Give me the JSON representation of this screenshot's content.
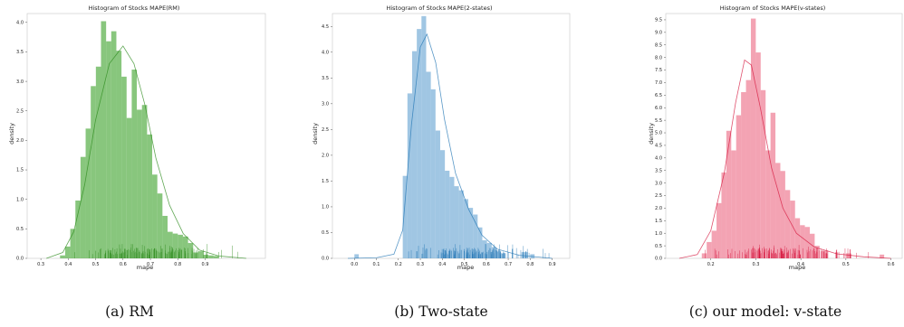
{
  "chart_data": [
    {
      "type": "histogram",
      "title": "Histogram of Stocks MAPE(RM)",
      "xlabel": "mape",
      "ylabel": "density",
      "caption": "(a) RM",
      "xlim": [
        0.25,
        1.12
      ],
      "ylim": [
        0,
        4.15
      ],
      "xticks": [
        "0.3",
        "0.4",
        "0.5",
        "0.6",
        "0.7",
        "0.8",
        "0.9"
      ],
      "yticks": [
        "0.0",
        "0.5",
        "1.0",
        "1.5",
        "2.0",
        "2.5",
        "3.0",
        "3.5",
        "4.0"
      ],
      "color": "#5ab04b",
      "rug_color": "#2e8b1e",
      "bin_start": 0.37,
      "bin_width": 0.0187,
      "values": [
        0.05,
        0.2,
        0.5,
        0.98,
        1.72,
        2.2,
        2.92,
        3.25,
        4.02,
        3.68,
        3.85,
        3.52,
        3.08,
        2.38,
        3.2,
        2.52,
        2.6,
        2.1,
        1.42,
        1.1,
        0.72,
        0.45,
        0.42,
        0.4,
        0.37,
        0.26,
        0.1,
        0.12,
        0.06,
        0.05,
        0.04
      ],
      "kde": [
        [
          0.32,
          0.0
        ],
        [
          0.38,
          0.1
        ],
        [
          0.42,
          0.45
        ],
        [
          0.46,
          1.25
        ],
        [
          0.5,
          2.35
        ],
        [
          0.55,
          3.3
        ],
        [
          0.6,
          3.6
        ],
        [
          0.64,
          3.3
        ],
        [
          0.68,
          2.6
        ],
        [
          0.72,
          1.7
        ],
        [
          0.77,
          0.9
        ],
        [
          0.82,
          0.42
        ],
        [
          0.88,
          0.14
        ],
        [
          0.95,
          0.04
        ],
        [
          1.05,
          0.0
        ]
      ],
      "rug_range": [
        0.36,
        1.07
      ]
    },
    {
      "type": "histogram",
      "title": "Histogram of Stocks MAPE(2-states)",
      "xlabel": "mape",
      "ylabel": "density",
      "caption": "(b) Two-state",
      "xlim": [
        -0.1,
        0.98
      ],
      "ylim": [
        0,
        4.75
      ],
      "xticks": [
        "0.0",
        "0.1",
        "0.2",
        "0.3",
        "0.4",
        "0.5",
        "0.6",
        "0.7",
        "0.8",
        "0.9"
      ],
      "yticks": [
        "0.0",
        "0.5",
        "1.0",
        "1.5",
        "2.0",
        "2.5",
        "3.0",
        "3.5",
        "4.0",
        "4.5"
      ],
      "color": "#7bb0d8",
      "rug_color": "#2276b4",
      "bin_start": 0.22,
      "bin_width": 0.0213,
      "values": [
        1.6,
        3.2,
        4.02,
        4.45,
        4.7,
        3.62,
        3.28,
        2.48,
        2.1,
        1.7,
        1.58,
        1.4,
        1.32,
        1.15,
        0.98,
        0.85,
        0.6,
        0.35,
        0.3,
        0.22,
        0.15
      ],
      "extra_bins": [
        {
          "x": 0.0,
          "w": 0.02,
          "v": 0.08
        },
        {
          "x": 0.66,
          "w": 0.03,
          "v": 0.1
        },
        {
          "x": 0.76,
          "w": 0.03,
          "v": 0.12
        },
        {
          "x": 0.8,
          "w": 0.02,
          "v": 0.08
        }
      ],
      "kde": [
        [
          -0.03,
          0.0
        ],
        [
          0.1,
          0.01
        ],
        [
          0.18,
          0.08
        ],
        [
          0.22,
          0.55
        ],
        [
          0.26,
          2.6
        ],
        [
          0.3,
          4.1
        ],
        [
          0.33,
          4.35
        ],
        [
          0.37,
          3.8
        ],
        [
          0.41,
          2.7
        ],
        [
          0.46,
          1.65
        ],
        [
          0.52,
          0.95
        ],
        [
          0.58,
          0.45
        ],
        [
          0.65,
          0.18
        ],
        [
          0.75,
          0.06
        ],
        [
          0.9,
          0.0
        ]
      ],
      "rug_range": [
        0.2,
        0.93
      ]
    },
    {
      "type": "histogram",
      "title": "Histogram of Stocks MAPE(v-states)",
      "xlabel": "mape",
      "ylabel": "density",
      "caption": "(c) our model: v-state",
      "xlim": [
        0.1,
        0.625
      ],
      "ylim": [
        0,
        9.75
      ],
      "xticks": [
        "0.2",
        "0.3",
        "0.4",
        "0.5",
        "0.6"
      ],
      "yticks": [
        "0.0",
        "0.5",
        "1.0",
        "1.5",
        "2.0",
        "2.5",
        "3.0",
        "3.5",
        "4.0",
        "4.5",
        "5.0",
        "5.5",
        "6.0",
        "6.5",
        "7.0",
        "7.5",
        "8.0",
        "8.5",
        "9.0",
        "9.5"
      ],
      "color": "#ee8096",
      "rug_color": "#d6173e",
      "bin_start": 0.18,
      "bin_width": 0.0109,
      "values": [
        0.2,
        0.65,
        1.1,
        2.2,
        3.42,
        5.08,
        4.3,
        5.7,
        6.62,
        7.1,
        9.55,
        8.2,
        6.7,
        4.3,
        5.8,
        3.8,
        3.48,
        2.72,
        2.3,
        1.6,
        1.32,
        1.25,
        0.98,
        0.5
      ],
      "extra_bins": [
        {
          "x": 0.445,
          "w": 0.012,
          "v": 0.3
        },
        {
          "x": 0.5,
          "w": 0.012,
          "v": 0.2
        },
        {
          "x": 0.575,
          "w": 0.01,
          "v": 0.15
        }
      ],
      "kde": [
        [
          0.13,
          0.0
        ],
        [
          0.17,
          0.15
        ],
        [
          0.2,
          1.1
        ],
        [
          0.23,
          3.4
        ],
        [
          0.255,
          6.2
        ],
        [
          0.275,
          7.9
        ],
        [
          0.29,
          7.7
        ],
        [
          0.31,
          6.0
        ],
        [
          0.335,
          3.6
        ],
        [
          0.36,
          2.0
        ],
        [
          0.39,
          1.0
        ],
        [
          0.43,
          0.45
        ],
        [
          0.48,
          0.18
        ],
        [
          0.54,
          0.06
        ],
        [
          0.6,
          0.0
        ]
      ],
      "rug_range": [
        0.16,
        0.6
      ]
    }
  ]
}
